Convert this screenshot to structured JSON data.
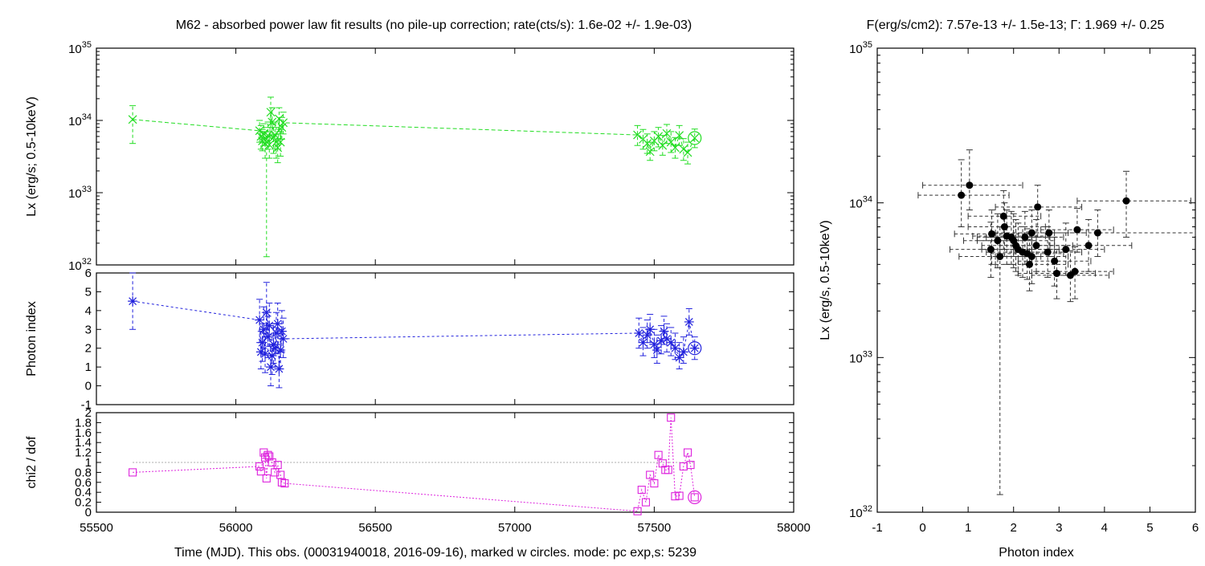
{
  "chart_data": [
    {
      "type": "line",
      "panel": "lx",
      "title": "M62  - absorbed power law fit results (no pile-up correction; rate(cts/s): 1.6e-02 +/- 1.9e-03)",
      "ylabel": "Lx (erg/s; 0.5-10keV)",
      "xlim": [
        55500,
        58000
      ],
      "ylim": [
        1e+32,
        1e+35
      ],
      "yscale": "log",
      "yticks": [
        {
          "base": "10",
          "exp": "32",
          "value": 1e+32
        },
        {
          "base": "10",
          "exp": "33",
          "value": 1e+33
        },
        {
          "base": "10",
          "exp": "34",
          "value": 1e+34
        },
        {
          "base": "10",
          "exp": "35",
          "value": 1e+35
        }
      ],
      "color": "#22dd22",
      "points": [
        [
          55630,
          1.03e+34,
          4.8e+33,
          1.6e+34
        ],
        [
          56085,
          7.2e+33,
          5e+33,
          1e+34
        ],
        [
          56090,
          6e+33,
          4e+33,
          8.5e+33
        ],
        [
          56095,
          5.2e+33,
          3.8e+33,
          7.5e+33
        ],
        [
          56100,
          6.5e+33,
          4.5e+33,
          9e+33
        ],
        [
          56105,
          4.8e+33,
          3e+33,
          7e+33
        ],
        [
          56110,
          5.5e+33,
          1.3e+32,
          8e+33
        ],
        [
          56115,
          6.2e+33,
          4e+33,
          9.5e+33
        ],
        [
          56120,
          4.6e+33,
          3e+33,
          7e+33
        ],
        [
          56125,
          1.3e+34,
          8e+33,
          2.1e+34
        ],
        [
          56130,
          9.5e+33,
          6e+33,
          1.5e+34
        ],
        [
          56135,
          5.8e+33,
          3.5e+33,
          9e+33
        ],
        [
          56140,
          6.3e+33,
          4e+33,
          9.5e+33
        ],
        [
          56145,
          5e+33,
          3e+33,
          8e+33
        ],
        [
          56150,
          4.2e+33,
          2.6e+33,
          6.5e+33
        ],
        [
          56155,
          1.05e+34,
          7e+33,
          1.5e+34
        ],
        [
          56160,
          5e+33,
          3.2e+33,
          7.5e+33
        ],
        [
          56165,
          8e+33,
          5.5e+33,
          1.1e+34
        ],
        [
          56170,
          9.3e+33,
          6.5e+33,
          1.3e+34
        ],
        [
          57440,
          6.3e+33,
          4.5e+33,
          8.5e+33
        ],
        [
          57460,
          5.5e+33,
          4e+33,
          7.5e+33
        ],
        [
          57475,
          4.8e+33,
          3.5e+33,
          6.5e+33
        ],
        [
          57485,
          3.7e+33,
          2.8e+33,
          5e+33
        ],
        [
          57500,
          5.2e+33,
          3.8e+33,
          7e+33
        ],
        [
          57515,
          6e+33,
          4.3e+33,
          8e+33
        ],
        [
          57530,
          4.5e+33,
          3.3e+33,
          6.2e+33
        ],
        [
          57545,
          6.6e+33,
          4.8e+33,
          8.8e+33
        ],
        [
          57560,
          5e+33,
          3.6e+33,
          7e+33
        ],
        [
          57575,
          4.2e+33,
          3e+33,
          5.8e+33
        ],
        [
          57590,
          6.2e+33,
          4.5e+33,
          8.5e+33
        ],
        [
          57605,
          4e+33,
          2.8e+33,
          5.6e+33
        ],
        [
          57620,
          3.6e+33,
          2.5e+33,
          5e+33
        ],
        [
          57645,
          5.7e+33,
          4.2e+33,
          7.6e+33
        ]
      ],
      "marked": [
        57645,
        5.7e+33
      ]
    },
    {
      "type": "line",
      "panel": "gamma",
      "ylabel": "Photon index",
      "xlim": [
        55500,
        58000
      ],
      "ylim": [
        -1,
        6
      ],
      "yticks": [
        "-1",
        "0",
        "1",
        "2",
        "3",
        "4",
        "5",
        "6"
      ],
      "color": "#2222dd",
      "points": [
        [
          55630,
          4.5,
          3.0,
          6.0
        ],
        [
          56085,
          3.5,
          2.3,
          4.6
        ],
        [
          56090,
          1.8,
          0.9,
          2.9
        ],
        [
          56095,
          2.3,
          1.3,
          3.3
        ],
        [
          56100,
          3.0,
          2.0,
          4.2
        ],
        [
          56105,
          1.7,
          0.7,
          2.8
        ],
        [
          56110,
          3.9,
          2.6,
          5.5
        ],
        [
          56115,
          2.6,
          1.5,
          3.7
        ],
        [
          56120,
          3.2,
          2.1,
          4.4
        ],
        [
          56125,
          1.0,
          0.0,
          2.1
        ],
        [
          56130,
          1.6,
          0.6,
          2.7
        ],
        [
          56135,
          2.2,
          1.2,
          3.3
        ],
        [
          56140,
          2.0,
          1.0,
          3.1
        ],
        [
          56145,
          2.8,
          1.7,
          3.9
        ],
        [
          56150,
          3.3,
          2.2,
          4.4
        ],
        [
          56155,
          0.9,
          -0.1,
          1.9
        ],
        [
          56160,
          1.9,
          0.9,
          3.0
        ],
        [
          56165,
          2.9,
          1.8,
          4.0
        ],
        [
          56170,
          2.5,
          1.5,
          3.6
        ],
        [
          57445,
          2.8,
          2.0,
          3.6
        ],
        [
          57460,
          2.3,
          1.6,
          3.1
        ],
        [
          57475,
          2.7,
          2.0,
          3.5
        ],
        [
          57485,
          3.0,
          2.3,
          3.8
        ],
        [
          57500,
          2.2,
          1.5,
          3.0
        ],
        [
          57510,
          1.9,
          1.2,
          2.7
        ],
        [
          57525,
          2.4,
          1.7,
          3.2
        ],
        [
          57535,
          2.9,
          2.2,
          3.7
        ],
        [
          57545,
          2.5,
          1.8,
          3.3
        ],
        [
          57560,
          2.3,
          1.6,
          3.1
        ],
        [
          57575,
          2.0,
          1.4,
          2.8
        ],
        [
          57590,
          1.5,
          0.9,
          2.3
        ],
        [
          57605,
          1.8,
          1.2,
          2.6
        ],
        [
          57625,
          3.4,
          2.7,
          4.1
        ],
        [
          57645,
          2.0,
          1.4,
          2.6
        ]
      ],
      "marked": [
        57645,
        2.0
      ]
    },
    {
      "type": "line",
      "panel": "chi2",
      "ylabel": "chi2 / dof",
      "xlabel": "Time (MJD). This obs. (00031940018, 2016-09-16), marked w circles. mode: pc exp,s: 5239",
      "xlim": [
        55500,
        58000
      ],
      "ylim": [
        0,
        2
      ],
      "xticks": [
        "55500",
        "56000",
        "56500",
        "57000",
        "57500",
        "58000"
      ],
      "yticks": [
        "0",
        "0.2",
        "0.4",
        "0.6",
        "0.8",
        "1",
        "1.2",
        "1.4",
        "1.6",
        "1.8",
        "2"
      ],
      "reference_line": 1.0,
      "color": "#dd22dd",
      "points": [
        [
          55630,
          0.8
        ],
        [
          56085,
          0.92
        ],
        [
          56090,
          0.82
        ],
        [
          56100,
          1.2
        ],
        [
          56105,
          1.1
        ],
        [
          56110,
          0.68
        ],
        [
          56115,
          1.15
        ],
        [
          56120,
          1.12
        ],
        [
          56130,
          1.0
        ],
        [
          56140,
          0.8
        ],
        [
          56150,
          0.95
        ],
        [
          56160,
          0.75
        ],
        [
          56165,
          0.6
        ],
        [
          56175,
          0.58
        ],
        [
          57440,
          0.02
        ],
        [
          57455,
          0.45
        ],
        [
          57470,
          0.2
        ],
        [
          57485,
          0.75
        ],
        [
          57500,
          0.58
        ],
        [
          57515,
          1.15
        ],
        [
          57530,
          0.98
        ],
        [
          57540,
          0.85
        ],
        [
          57550,
          0.85
        ],
        [
          57560,
          1.9
        ],
        [
          57575,
          0.32
        ],
        [
          57590,
          0.33
        ],
        [
          57605,
          0.92
        ],
        [
          57620,
          1.2
        ],
        [
          57630,
          0.95
        ],
        [
          57645,
          0.3
        ]
      ],
      "marked": [
        57645,
        0.3
      ]
    },
    {
      "type": "scatter",
      "panel": "lx-vs-gamma",
      "title": "F(erg/s/cm2): 7.57e-13 +/- 1.5e-13; Γ: 1.969 +/- 0.25",
      "xlabel": "Photon index",
      "ylabel": "Lx (erg/s, 0.5-10keV)",
      "xlim": [
        -1,
        6
      ],
      "ylim": [
        1e+32,
        1e+35
      ],
      "yscale": "log",
      "xticks": [
        "-1",
        "0",
        "1",
        "2",
        "3",
        "4",
        "5",
        "6"
      ],
      "yticks": [
        {
          "base": "10",
          "exp": "32",
          "value": 1e+32
        },
        {
          "base": "10",
          "exp": "33",
          "value": 1e+33
        },
        {
          "base": "10",
          "exp": "34",
          "value": 1e+34
        },
        {
          "base": "10",
          "exp": "35",
          "value": 1e+35
        }
      ],
      "points": [
        [
          1.03,
          1.3e+34,
          0.0,
          2.2,
          9e+33,
          2.2e+34
        ],
        [
          0.85,
          1.12e+34,
          -0.1,
          1.9,
          7e+33,
          1.9e+34
        ],
        [
          4.48,
          1.03e+34,
          3.4,
          5.9,
          6e+33,
          1.6e+34
        ],
        [
          2.53,
          9.4e+33,
          1.6,
          3.5,
          6e+33,
          1.3e+34
        ],
        [
          1.78,
          8.2e+33,
          1.0,
          2.6,
          5e+33,
          1.2e+34
        ],
        [
          1.8,
          7e+33,
          1.0,
          2.7,
          4.5e+33,
          1e+34
        ],
        [
          1.52,
          6.3e+33,
          0.7,
          2.4,
          4e+33,
          9e+33
        ],
        [
          1.85,
          6.1e+33,
          1.1,
          2.7,
          4e+33,
          9e+33
        ],
        [
          1.95,
          6e+33,
          1.2,
          2.8,
          4e+33,
          8.8e+33
        ],
        [
          2.78,
          6.4e+33,
          2.0,
          3.6,
          4.5e+33,
          9e+33
        ],
        [
          3.4,
          6.7e+33,
          2.6,
          4.2,
          4.8e+33,
          9.2e+33
        ],
        [
          3.85,
          6.4e+33,
          2.9,
          6.4,
          4.5e+33,
          9e+33
        ],
        [
          2.4,
          6.4e+33,
          1.6,
          3.2,
          4.5e+33,
          9e+33
        ],
        [
          1.65,
          5.7e+33,
          0.9,
          2.5,
          3.8e+33,
          8.5e+33
        ],
        [
          2.0,
          5.7e+33,
          1.2,
          2.9,
          3.8e+33,
          8.5e+33
        ],
        [
          2.25,
          6e+33,
          1.4,
          3.1,
          4e+33,
          8.8e+33
        ],
        [
          2.05,
          5.3e+33,
          1.3,
          2.9,
          3.6e+33,
          7.8e+33
        ],
        [
          2.1,
          5e+33,
          1.3,
          3.0,
          3.4e+33,
          7.4e+33
        ],
        [
          2.2,
          4.8e+33,
          1.4,
          3.1,
          3.3e+33,
          7e+33
        ],
        [
          2.5,
          5.3e+33,
          1.7,
          3.3,
          3.6e+33,
          7.8e+33
        ],
        [
          3.15,
          5e+33,
          2.3,
          4.0,
          3.4e+33,
          7.4e+33
        ],
        [
          3.65,
          5.3e+33,
          2.8,
          4.6,
          3.6e+33,
          7.8e+33
        ],
        [
          1.5,
          5e+33,
          0.6,
          2.4,
          3.3e+33,
          7.5e+33
        ],
        [
          2.3,
          4.7e+33,
          1.5,
          3.1,
          3.2e+33,
          6.8e+33
        ],
        [
          2.4,
          4.5e+33,
          1.6,
          3.2,
          3e+33,
          6.5e+33
        ],
        [
          2.75,
          4.8e+33,
          2.0,
          3.5,
          3.3e+33,
          7e+33
        ],
        [
          1.7,
          4.5e+33,
          0.8,
          2.6,
          1.3e+32,
          7e+33
        ],
        [
          2.35,
          4e+33,
          1.6,
          3.2,
          2.7e+33,
          5.8e+33
        ],
        [
          2.9,
          4.2e+33,
          2.1,
          3.7,
          2.9e+33,
          6e+33
        ],
        [
          2.95,
          3.5e+33,
          2.1,
          3.8,
          2.4e+33,
          5e+33
        ],
        [
          3.25,
          3.4e+33,
          2.4,
          4.1,
          2.3e+33,
          4.9e+33
        ],
        [
          3.35,
          3.6e+33,
          2.5,
          4.2,
          2.4e+33,
          5.2e+33
        ]
      ]
    }
  ]
}
